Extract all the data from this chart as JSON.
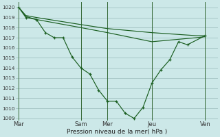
{
  "xlabel": "Pression niveau de la mer( hPa )",
  "ylim": [
    1008.8,
    1020.5
  ],
  "xlim": [
    -0.15,
    11.2
  ],
  "background_color": "#cce8e8",
  "grid_color": "#99bbbb",
  "line_color": "#1a5e20",
  "day_labels": [
    "Mar",
    "Sam",
    "Mer",
    "Jeu",
    "Ven"
  ],
  "day_positions": [
    0,
    3.5,
    5.0,
    7.5,
    10.5
  ],
  "series1_x": [
    0,
    0.4,
    1.0,
    1.5,
    2.0,
    2.5,
    3.0,
    3.5,
    4.0,
    4.5,
    5.0,
    5.5,
    6.0,
    6.5,
    7.0,
    7.5,
    8.0,
    8.5,
    9.0,
    9.5,
    10.5
  ],
  "series1_y": [
    1020.0,
    1019.0,
    1018.8,
    1017.5,
    1017.0,
    1017.0,
    1015.1,
    1014.0,
    1013.4,
    1011.8,
    1010.7,
    1010.7,
    1009.5,
    1009.0,
    1010.1,
    1012.5,
    1013.8,
    1014.8,
    1016.6,
    1016.3,
    1017.2
  ],
  "series2_x": [
    0,
    0.4,
    1.0,
    3.5,
    5.0,
    7.5,
    10.0,
    10.5
  ],
  "series2_y": [
    1020.0,
    1019.2,
    1019.0,
    1018.3,
    1017.9,
    1017.5,
    1017.2,
    1017.2
  ],
  "series3_x": [
    0,
    0.4,
    1.0,
    3.5,
    5.0,
    7.5,
    10.0,
    10.5
  ],
  "series3_y": [
    1020.0,
    1019.1,
    1018.8,
    1018.0,
    1017.5,
    1016.6,
    1017.0,
    1017.1
  ],
  "yticks": [
    1009,
    1010,
    1011,
    1012,
    1013,
    1014,
    1015,
    1016,
    1017,
    1018,
    1019,
    1020
  ]
}
